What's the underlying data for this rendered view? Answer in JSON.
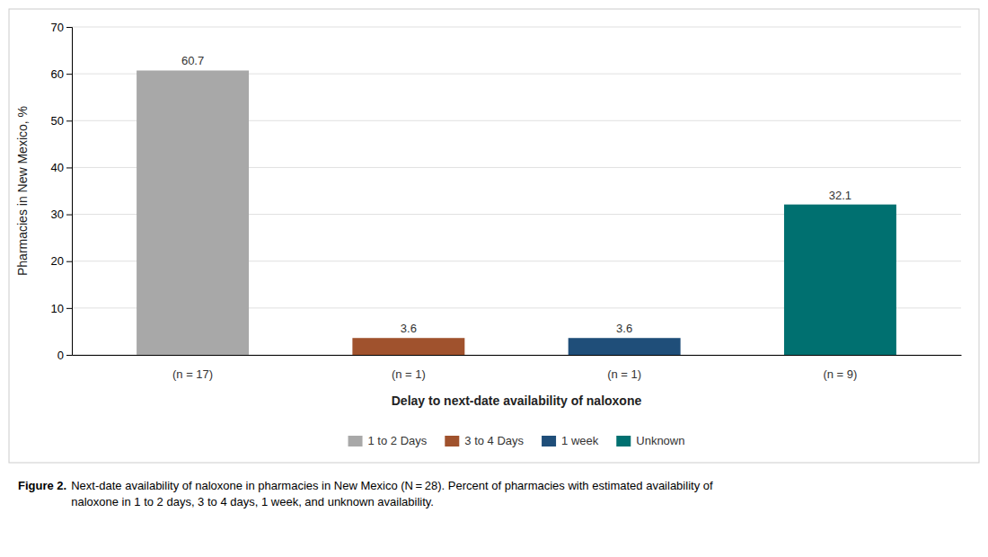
{
  "chart_data": {
    "type": "bar",
    "categories": [
      "1 to 2 Days",
      "3 to 4 Days",
      "1 week",
      "Unknown"
    ],
    "values": [
      60.7,
      3.6,
      3.6,
      32.1
    ],
    "colors": [
      "#a8a8a8",
      "#a0522d",
      "#1f4e79",
      "#007070"
    ],
    "annotations": [
      "(n = 17)",
      "(n = 1)",
      "(n = 1)",
      "(n = 9)"
    ],
    "xlabel": "Delay to next-date availability of naloxone",
    "ylabel": "Pharmacies in New Mexico, %",
    "ylim": [
      0,
      70
    ],
    "yticks": [
      0,
      10,
      20,
      30,
      40,
      50,
      60,
      70
    ],
    "grid": true,
    "data_labels": true,
    "tick_labels": "y",
    "legend": "bottom",
    "caption_label": "Figure 2.",
    "caption": "Next-date availability of naloxone in pharmacies in New Mexico (N = 28). Percent of pharmacies with estimated availability of\nnaloxone in 1 to 2 days, 3 to 4 days, 1 week, and unknown availability."
  }
}
